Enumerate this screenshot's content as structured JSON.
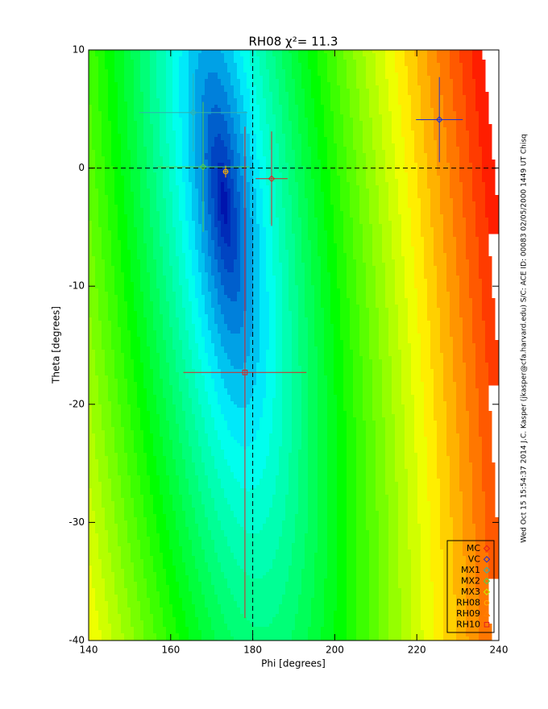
{
  "chart_data": {
    "type": "scatter",
    "title": "RH08 χ²= 11.3",
    "x_label": "Phi [degrees]",
    "y_label": "Theta [degrees]",
    "side_note": "Wed Oct 15 15:54:37 2014   J.C. Kasper (jkasper@cfa.harvard.edu)   S/C: ACE ID: 00083 02/05/2000  1449 UT Chisq",
    "xlim": [
      140,
      240
    ],
    "xticks": [
      140,
      160,
      180,
      200,
      220,
      240
    ],
    "ylim": [
      -40,
      10
    ],
    "yticks": [
      -40,
      -30,
      -20,
      -10,
      0,
      10
    ],
    "ref_x": 180,
    "ref_y": 0,
    "legend": "lower right",
    "series": [
      {
        "name": "MC",
        "color": "#e02020",
        "symbol": "diamond",
        "x": [
          184.6
        ],
        "y": [
          -0.9
        ],
        "xerr": [
          3.9
        ],
        "yerr": [
          4.0
        ]
      },
      {
        "name": "VC",
        "color": "#2030d0",
        "symbol": "diamond",
        "x": [
          225.5
        ],
        "y": [
          4.1
        ],
        "xerr": [
          5.7
        ],
        "yerr": [
          3.6
        ]
      },
      {
        "name": "MX1",
        "color": "#30b0b0",
        "symbol": "diamond",
        "x": [
          165.5
        ],
        "y": [
          4.7
        ],
        "xerr": [
          13.2
        ],
        "yerr": [
          3.3
        ]
      },
      {
        "name": "MX2",
        "color": "#50d050",
        "symbol": "diamond",
        "x": [
          167.9
        ],
        "y": [
          0.1
        ],
        "xerr": [
          11.3
        ],
        "yerr": [
          5.5
        ]
      },
      {
        "name": "MX3",
        "color": "#c0f000",
        "symbol": "diamond",
        "x": [],
        "y": [],
        "xerr": [],
        "yerr": []
      },
      {
        "name": "RH08",
        "color": "#ffb000",
        "symbol": "circle",
        "x": [
          173.4
        ],
        "y": [
          -0.3
        ],
        "xerr": [
          0.7
        ],
        "yerr": [
          0.5
        ]
      },
      {
        "name": "RH09",
        "color": "#ff8000",
        "symbol": "triangle",
        "x": [],
        "y": [],
        "xerr": [],
        "yerr": []
      },
      {
        "name": "RH10",
        "color": "#e02020",
        "symbol": "square",
        "x": [
          178.1
        ],
        "y": [
          -17.3
        ],
        "xerr": [
          15.0
        ],
        "yerr": [
          20.8
        ]
      }
    ]
  }
}
